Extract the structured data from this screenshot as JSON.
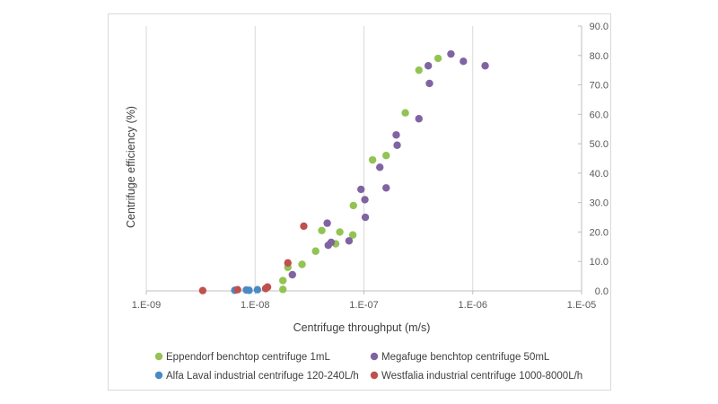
{
  "chart_data": {
    "type": "scatter",
    "title": "",
    "xlabel": "Centrifuge throughput (m/s)",
    "ylabel": "Centrifuge efficiency (%)",
    "xscale": "log",
    "xlim": [
      1e-09,
      1e-05
    ],
    "ylim": [
      0,
      90
    ],
    "x_tick_values": [
      1e-09,
      1e-08,
      1e-07,
      1e-06,
      1e-05
    ],
    "x_tick_labels": [
      "1.E-09",
      "1.E-08",
      "1.E-07",
      "1.E-06",
      "1.E-05"
    ],
    "y_tick_values": [
      0,
      10,
      20,
      30,
      40,
      50,
      60,
      70,
      80,
      90
    ],
    "y_tick_labels": [
      "0.0",
      "10.0",
      "20.0",
      "30.0",
      "40.0",
      "50.0",
      "60.0",
      "70.0",
      "80.0",
      "90.0"
    ],
    "grid": "vertical",
    "y_axis_position": "right",
    "legend_position": "bottom",
    "series": [
      {
        "name": "Eppendorf benchtop centrifuge 1mL",
        "color": "#92c353",
        "points": [
          [
            1.8e-08,
            3.5
          ],
          [
            1.8e-08,
            0.5
          ],
          [
            2e-08,
            8.0
          ],
          [
            2.7e-08,
            9.0
          ],
          [
            3.6e-08,
            13.5
          ],
          [
            4.1e-08,
            20.5
          ],
          [
            5.5e-08,
            16.0
          ],
          [
            6e-08,
            20.0
          ],
          [
            7.9e-08,
            19.0
          ],
          [
            8e-08,
            29.0
          ],
          [
            1.2e-07,
            44.5
          ],
          [
            1.6e-07,
            46.0
          ],
          [
            2.4e-07,
            60.5
          ],
          [
            3.2e-07,
            75.0
          ],
          [
            4.8e-07,
            79.0
          ]
        ]
      },
      {
        "name": "Megafuge benchtop centrifuge 50mL",
        "color": "#8064a2",
        "points": [
          [
            2.2e-08,
            5.5
          ],
          [
            4.6e-08,
            23.0
          ],
          [
            4.7e-08,
            15.5
          ],
          [
            5e-08,
            16.5
          ],
          [
            7.3e-08,
            17.0
          ],
          [
            9.4e-08,
            34.5
          ],
          [
            1.02e-07,
            31.0
          ],
          [
            1.03e-07,
            25.0
          ],
          [
            1.4e-07,
            42.0
          ],
          [
            1.6e-07,
            35.0
          ],
          [
            1.98e-07,
            53.0
          ],
          [
            2.02e-07,
            49.5
          ],
          [
            3.2e-07,
            58.5
          ],
          [
            3.9e-07,
            76.5
          ],
          [
            4e-07,
            70.5
          ],
          [
            6.3e-07,
            80.5
          ],
          [
            8.2e-07,
            78.0
          ],
          [
            1.3e-06,
            76.5
          ]
        ]
      },
      {
        "name": "Alfa Laval industrial centrifuge 120-240L/h",
        "color": "#4a8ac4",
        "points": [
          [
            6.5e-09,
            0.2
          ],
          [
            8.3e-09,
            0.3
          ],
          [
            8.8e-09,
            0.2
          ],
          [
            1.05e-08,
            0.4
          ]
        ]
      },
      {
        "name": "Westfalia industrial centrifuge 1000-8000L/h",
        "color": "#c0504d",
        "points": [
          [
            3.3e-09,
            0.1
          ],
          [
            6.9e-09,
            0.4
          ],
          [
            1.25e-08,
            0.8
          ],
          [
            1.3e-08,
            1.3
          ],
          [
            2e-08,
            9.5
          ],
          [
            2.8e-08,
            22.0
          ]
        ]
      }
    ]
  }
}
